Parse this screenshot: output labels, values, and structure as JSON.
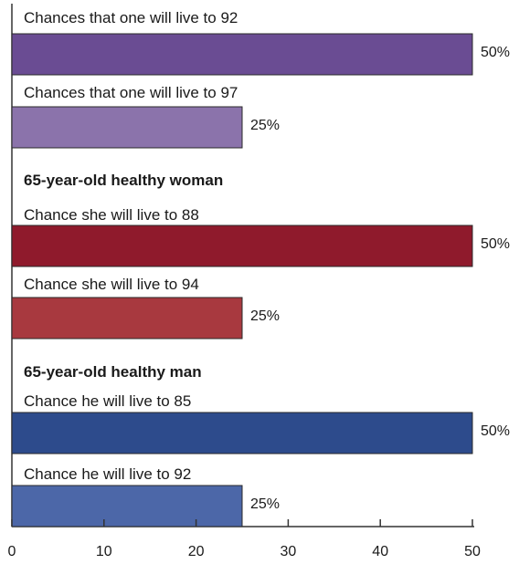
{
  "chart_data": {
    "type": "bar",
    "orientation": "horizontal",
    "xlim": [
      0,
      50
    ],
    "x_ticks": [
      "0",
      "10",
      "20",
      "30",
      "40",
      "50"
    ],
    "grid": false,
    "groups": [
      {
        "title": "",
        "bars": [
          {
            "label": "Chances that one will live to 92",
            "value": 50,
            "value_label": "50%",
            "color": "#6a4c93"
          },
          {
            "label": "Chances that one will live to 97",
            "value": 25,
            "value_label": "25%",
            "color": "#8b73ab"
          }
        ]
      },
      {
        "title": "65-year-old healthy woman",
        "bars": [
          {
            "label": "Chance she will live to 88",
            "value": 50,
            "value_label": "50%",
            "color": "#8f1a2c"
          },
          {
            "label": "Chance she will live to 94",
            "value": 25,
            "value_label": "25%",
            "color": "#a8393f"
          }
        ]
      },
      {
        "title": "65-year-old healthy man",
        "bars": [
          {
            "label": "Chance he will live to 85",
            "value": 50,
            "value_label": "50%",
            "color": "#2d4b8c"
          },
          {
            "label": "Chance he will live to 92",
            "value": 25,
            "value_label": "25%",
            "color": "#4c67a8"
          }
        ]
      }
    ]
  }
}
